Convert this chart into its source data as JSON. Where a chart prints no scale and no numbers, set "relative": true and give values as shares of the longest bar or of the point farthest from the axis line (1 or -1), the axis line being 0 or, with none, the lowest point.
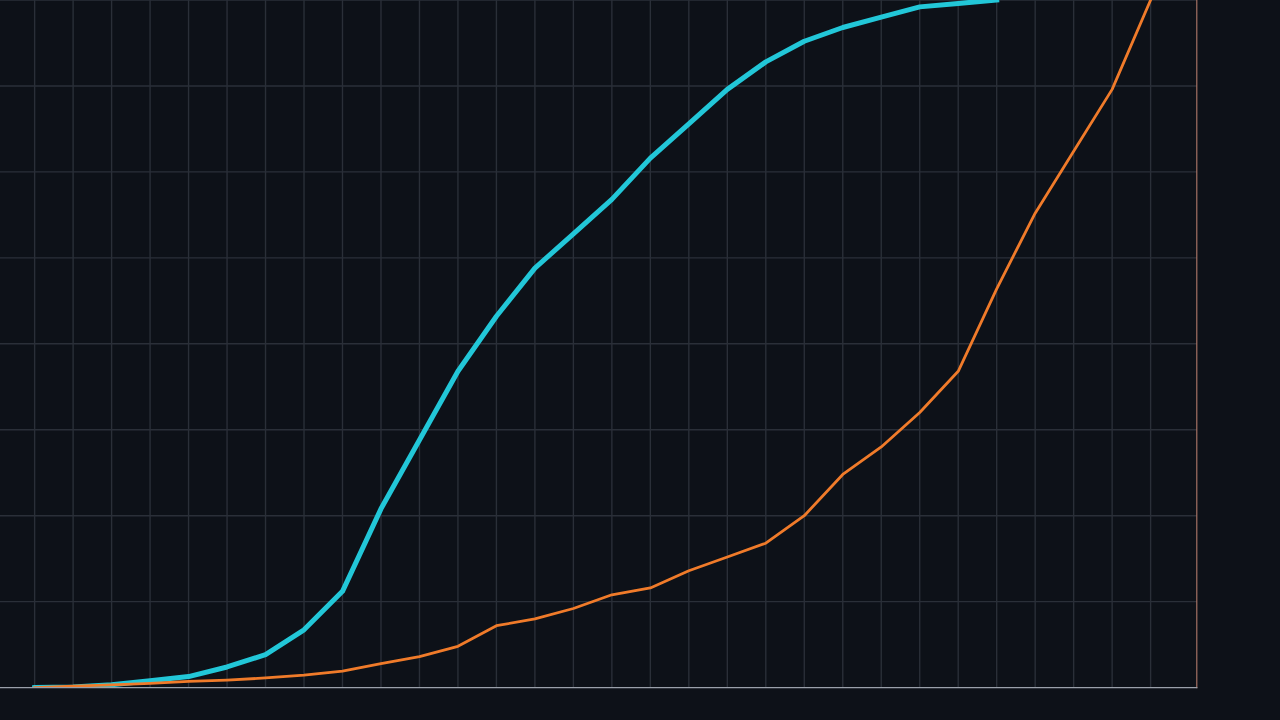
{
  "chart_data": {
    "type": "line",
    "relative": true,
    "grid": true,
    "marker": "none",
    "line_style": "solid",
    "categories": [
      null,
      null,
      null,
      null,
      null,
      null,
      null,
      null,
      null,
      null,
      null,
      null,
      null,
      null,
      null,
      null,
      null,
      null,
      null,
      null,
      null,
      null,
      null,
      null,
      null,
      null,
      null,
      null,
      null,
      null
    ],
    "series": [
      {
        "color": "#22c7d8",
        "values": [
          0,
          0.001,
          0.004,
          0.01,
          0.016,
          0.03,
          0.048,
          0.084,
          0.14,
          0.26,
          0.36,
          0.46,
          0.54,
          0.61,
          0.66,
          0.71,
          0.77,
          0.82,
          0.87,
          0.91,
          0.94,
          0.96,
          0.975,
          0.99,
          0.995,
          1.0,
          null,
          null,
          null,
          null
        ]
      },
      {
        "color": "#f07b2a",
        "values": [
          0,
          0.002,
          0.004,
          0.006,
          0.009,
          0.011,
          0.014,
          0.018,
          0.024,
          0.035,
          0.045,
          0.06,
          0.09,
          0.1,
          0.115,
          0.135,
          0.145,
          0.17,
          0.19,
          0.21,
          0.25,
          0.31,
          0.35,
          0.4,
          0.46,
          0.58,
          0.69,
          0.78,
          0.87,
          1.0
        ]
      }
    ]
  }
}
